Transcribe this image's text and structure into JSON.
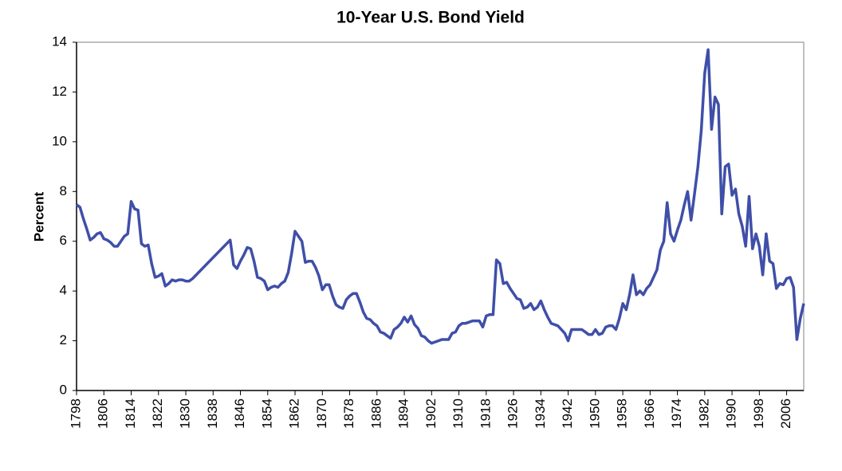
{
  "chart_data": {
    "type": "line",
    "title": "10-Year U.S. Bond Yield",
    "y_label": "Percent",
    "xlim": [
      1798,
      2011
    ],
    "ylim": [
      0,
      14
    ],
    "xticks": [
      1798,
      1806,
      1814,
      1822,
      1830,
      1838,
      1846,
      1854,
      1862,
      1870,
      1878,
      1886,
      1894,
      1902,
      1910,
      1918,
      1926,
      1934,
      1942,
      1950,
      1958,
      1966,
      1974,
      1982,
      1990,
      1998,
      2006
    ],
    "yticks": [
      0,
      2,
      4,
      6,
      8,
      10,
      12,
      14
    ],
    "series": [
      {
        "color": "#3f4fa8",
        "x": [
          1798,
          1799,
          1800,
          1801,
          1802,
          1803,
          1804,
          1805,
          1806,
          1807,
          1808,
          1809,
          1810,
          1811,
          1812,
          1813,
          1814,
          1815,
          1816,
          1817,
          1818,
          1819,
          1820,
          1821,
          1822,
          1823,
          1824,
          1825,
          1826,
          1827,
          1828,
          1829,
          1830,
          1831,
          1832,
          1843,
          1844,
          1845,
          1846,
          1847,
          1848,
          1849,
          1850,
          1851,
          1852,
          1853,
          1854,
          1855,
          1856,
          1857,
          1858,
          1859,
          1860,
          1861,
          1862,
          1863,
          1864,
          1865,
          1866,
          1867,
          1868,
          1869,
          1870,
          1871,
          1872,
          1873,
          1874,
          1875,
          1876,
          1877,
          1878,
          1879,
          1880,
          1881,
          1882,
          1883,
          1884,
          1885,
          1886,
          1887,
          1888,
          1889,
          1890,
          1891,
          1892,
          1893,
          1894,
          1895,
          1896,
          1897,
          1898,
          1899,
          1900,
          1901,
          1902,
          1903,
          1904,
          1905,
          1906,
          1907,
          1908,
          1909,
          1910,
          1911,
          1912,
          1913,
          1914,
          1915,
          1916,
          1917,
          1918,
          1919,
          1920,
          1921,
          1922,
          1923,
          1924,
          1925,
          1926,
          1927,
          1928,
          1929,
          1930,
          1931,
          1932,
          1933,
          1934,
          1935,
          1936,
          1937,
          1938,
          1939,
          1940,
          1941,
          1942,
          1943,
          1944,
          1945,
          1946,
          1947,
          1948,
          1949,
          1950,
          1951,
          1952,
          1953,
          1954,
          1955,
          1956,
          1957,
          1958,
          1959,
          1960,
          1961,
          1962,
          1963,
          1964,
          1965,
          1966,
          1967,
          1968,
          1969,
          1970,
          1971,
          1972,
          1973,
          1974,
          1975,
          1976,
          1977,
          1978,
          1979,
          1980,
          1981,
          1982,
          1983,
          1984,
          1985,
          1986,
          1987,
          1988,
          1989,
          1990,
          1991,
          1992,
          1993,
          1994,
          1995,
          1996,
          1997,
          1998,
          1999,
          2000,
          2001,
          2002,
          2003,
          2004,
          2005,
          2006,
          2007,
          2008,
          2009,
          2010,
          2011
        ],
        "values": [
          7.47,
          7.37,
          6.9,
          6.5,
          6.05,
          6.15,
          6.3,
          6.35,
          6.1,
          6.05,
          5.95,
          5.8,
          5.8,
          6.0,
          6.2,
          6.3,
          7.6,
          7.3,
          7.25,
          5.9,
          5.8,
          5.85,
          5.1,
          4.55,
          4.6,
          4.7,
          4.2,
          4.3,
          4.45,
          4.4,
          4.45,
          4.45,
          4.4,
          4.4,
          4.5,
          6.05,
          5.05,
          4.9,
          5.2,
          5.45,
          5.75,
          5.7,
          5.2,
          4.55,
          4.5,
          4.4,
          4.05,
          4.15,
          4.2,
          4.15,
          4.3,
          4.4,
          4.75,
          5.5,
          6.4,
          6.2,
          6.0,
          5.15,
          5.2,
          5.2,
          4.95,
          4.6,
          4.05,
          4.25,
          4.25,
          3.8,
          3.45,
          3.35,
          3.3,
          3.65,
          3.8,
          3.9,
          3.9,
          3.55,
          3.15,
          2.9,
          2.85,
          2.7,
          2.6,
          2.35,
          2.3,
          2.2,
          2.1,
          2.45,
          2.55,
          2.7,
          2.95,
          2.75,
          3.0,
          2.65,
          2.5,
          2.2,
          2.15,
          2.0,
          1.9,
          1.95,
          2.0,
          2.05,
          2.05,
          2.05,
          2.3,
          2.35,
          2.6,
          2.7,
          2.7,
          2.75,
          2.8,
          2.8,
          2.8,
          2.55,
          3.0,
          3.05,
          3.05,
          5.25,
          5.1,
          4.3,
          4.35,
          4.1,
          3.9,
          3.7,
          3.65,
          3.3,
          3.35,
          3.5,
          3.25,
          3.35,
          3.6,
          3.25,
          2.95,
          2.7,
          2.65,
          2.6,
          2.45,
          2.3,
          2.0,
          2.45,
          2.45,
          2.45,
          2.45,
          2.35,
          2.25,
          2.25,
          2.45,
          2.25,
          2.3,
          2.55,
          2.6,
          2.6,
          2.45,
          2.9,
          3.5,
          3.25,
          3.85,
          4.65,
          3.85,
          4.0,
          3.85,
          4.1,
          4.25,
          4.55,
          4.85,
          5.65,
          6.0,
          7.55,
          6.3,
          6.0,
          6.45,
          6.85,
          7.45,
          8.0,
          6.85,
          7.9,
          9.0,
          10.45,
          12.75,
          13.7,
          10.5,
          11.8,
          11.5,
          7.1,
          9.0,
          9.1,
          7.85,
          8.1,
          7.1,
          6.6,
          5.8,
          7.8,
          5.7,
          6.3,
          5.8,
          4.65,
          6.3,
          5.2,
          5.1,
          4.1,
          4.3,
          4.25,
          4.5,
          4.55,
          4.15,
          2.05,
          2.9,
          3.5
        ]
      }
    ]
  }
}
